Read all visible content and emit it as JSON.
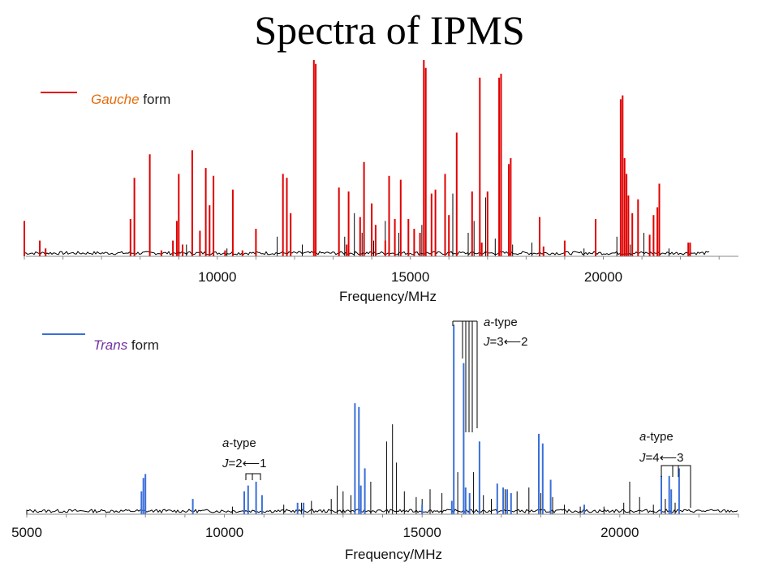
{
  "title": "Spectra of IPMS",
  "colors": {
    "gauche": "#e00000",
    "trans": "#3a6fd8",
    "observed": "#000000"
  },
  "chart_data": [
    {
      "type": "line",
      "legend": {
        "label_italic": "Gauche",
        "label_rest": " form",
        "label_color": "#e46c0a",
        "line_color": "#e00000"
      },
      "xlabel": "Frequency/MHz",
      "ticks": [
        "10000",
        "15000",
        "20000"
      ],
      "tick_values": [
        10000,
        15000,
        20000
      ],
      "xlim": [
        5000,
        23500
      ],
      "ylim": [
        0,
        100
      ],
      "series": [
        {
          "role": "observed",
          "peaks": [
            [
              7750,
              16
            ],
            [
              7850,
              13
            ],
            [
              9000,
              8
            ],
            [
              9200,
              6
            ],
            [
              10250,
              4
            ],
            [
              11550,
              10
            ],
            [
              11800,
              14
            ],
            [
              12200,
              6
            ],
            [
              12500,
              24
            ],
            [
              13300,
              10
            ],
            [
              13550,
              22
            ],
            [
              13750,
              12
            ],
            [
              14050,
              8
            ],
            [
              14350,
              18
            ],
            [
              14700,
              12
            ],
            [
              15300,
              16
            ],
            [
              15550,
              18
            ],
            [
              15900,
              12
            ],
            [
              16100,
              32
            ],
            [
              16500,
              12
            ],
            [
              16650,
              18
            ],
            [
              16950,
              30
            ],
            [
              17200,
              9
            ],
            [
              17650,
              6
            ],
            [
              18150,
              7
            ],
            [
              19500,
              4
            ],
            [
              20350,
              10
            ],
            [
              20700,
              6
            ],
            [
              21050,
              12
            ],
            [
              21200,
              7
            ],
            [
              21700,
              4
            ]
          ]
        },
        {
          "role": "gauche",
          "peaks": [
            [
              5000,
              18
            ],
            [
              5400,
              8
            ],
            [
              5550,
              4
            ],
            [
              7750,
              19
            ],
            [
              7850,
              40
            ],
            [
              8250,
              52
            ],
            [
              8550,
              3
            ],
            [
              8850,
              8
            ],
            [
              8950,
              18
            ],
            [
              9000,
              42
            ],
            [
              9100,
              6
            ],
            [
              9350,
              54
            ],
            [
              9550,
              13
            ],
            [
              9700,
              45
            ],
            [
              9800,
              26
            ],
            [
              9900,
              41
            ],
            [
              10200,
              3
            ],
            [
              10400,
              34
            ],
            [
              10650,
              3
            ],
            [
              11000,
              14
            ],
            [
              11700,
              42
            ],
            [
              11800,
              40
            ],
            [
              11900,
              22
            ],
            [
              12500,
              100
            ],
            [
              12550,
              98
            ],
            [
              13150,
              35
            ],
            [
              13350,
              6
            ],
            [
              13400,
              33
            ],
            [
              13700,
              20
            ],
            [
              13800,
              48
            ],
            [
              14000,
              27
            ],
            [
              14100,
              16
            ],
            [
              14350,
              8
            ],
            [
              14450,
              41
            ],
            [
              14600,
              19
            ],
            [
              14750,
              39
            ],
            [
              14950,
              19
            ],
            [
              15100,
              14
            ],
            [
              15250,
              12
            ],
            [
              15350,
              100
            ],
            [
              15400,
              96
            ],
            [
              15550,
              32
            ],
            [
              15650,
              34
            ],
            [
              15900,
              42
            ],
            [
              16000,
              21
            ],
            [
              16200,
              63
            ],
            [
              16600,
              33
            ],
            [
              16800,
              91
            ],
            [
              16850,
              7
            ],
            [
              17000,
              33
            ],
            [
              17300,
              91
            ],
            [
              17350,
              93
            ],
            [
              17550,
              47
            ],
            [
              17600,
              50
            ],
            [
              18350,
              20
            ],
            [
              18450,
              5
            ],
            [
              19000,
              8
            ],
            [
              19800,
              19
            ],
            [
              20450,
              80
            ],
            [
              20500,
              82
            ],
            [
              20550,
              50
            ],
            [
              20600,
              42
            ],
            [
              20650,
              31
            ],
            [
              20750,
              22
            ],
            [
              20900,
              29
            ],
            [
              21200,
              11
            ],
            [
              21300,
              21
            ],
            [
              21400,
              25
            ],
            [
              21450,
              37
            ],
            [
              22200,
              7
            ],
            [
              22250,
              7
            ]
          ]
        }
      ]
    },
    {
      "type": "line",
      "legend": {
        "label_italic": "Trans",
        "label_rest": " form",
        "label_color": "#7030a0",
        "line_color": "#3a6fd8"
      },
      "xlabel": "Frequency/MHz",
      "ticks": [
        "5000",
        "10000",
        "15000",
        "20000"
      ],
      "tick_values": [
        5000,
        10000,
        15000,
        20000
      ],
      "xlim": [
        5000,
        23000
      ],
      "ylim": [
        0,
        100
      ],
      "series": [
        {
          "role": "observed",
          "peaks": [
            [
              8000,
              6
            ],
            [
              9200,
              5
            ],
            [
              10200,
              4
            ],
            [
              11500,
              5
            ],
            [
              11950,
              6
            ],
            [
              12200,
              7
            ],
            [
              12700,
              8
            ],
            [
              12850,
              15
            ],
            [
              13000,
              12
            ],
            [
              13200,
              10
            ],
            [
              13400,
              8
            ],
            [
              13700,
              17
            ],
            [
              14100,
              38
            ],
            [
              14250,
              47
            ],
            [
              14350,
              27
            ],
            [
              14550,
              12
            ],
            [
              14850,
              9
            ],
            [
              15000,
              8
            ],
            [
              15200,
              13
            ],
            [
              15500,
              11
            ],
            [
              15900,
              22
            ],
            [
              16050,
              14
            ],
            [
              16300,
              22
            ],
            [
              16550,
              10
            ],
            [
              16750,
              8
            ],
            [
              17100,
              13
            ],
            [
              17400,
              12
            ],
            [
              17700,
              14
            ],
            [
              18000,
              11
            ],
            [
              18300,
              9
            ],
            [
              18600,
              5
            ],
            [
              19000,
              4
            ],
            [
              19600,
              4
            ],
            [
              20100,
              6
            ],
            [
              20250,
              17
            ],
            [
              20500,
              9
            ],
            [
              20850,
              5
            ],
            [
              21150,
              8
            ],
            [
              21400,
              6
            ]
          ]
        },
        {
          "role": "trans",
          "peaks": [
            [
              7900,
              12
            ],
            [
              7950,
              19
            ],
            [
              8000,
              21
            ],
            [
              9200,
              8
            ],
            [
              10500,
              12
            ],
            [
              10600,
              15
            ],
            [
              10800,
              17
            ],
            [
              10950,
              10
            ],
            [
              11850,
              6
            ],
            [
              12000,
              6
            ],
            [
              13300,
              58
            ],
            [
              13400,
              56
            ],
            [
              13450,
              15
            ],
            [
              13550,
              24
            ],
            [
              15000,
              5
            ],
            [
              15750,
              7
            ],
            [
              15800,
              99
            ],
            [
              16050,
              79
            ],
            [
              16100,
              14
            ],
            [
              16200,
              11
            ],
            [
              16450,
              38
            ],
            [
              16900,
              16
            ],
            [
              17050,
              14
            ],
            [
              17150,
              13
            ],
            [
              17250,
              11
            ],
            [
              17950,
              42
            ],
            [
              18050,
              37
            ],
            [
              18250,
              18
            ],
            [
              19100,
              5
            ],
            [
              21050,
              20
            ],
            [
              21250,
              20
            ],
            [
              21300,
              13
            ],
            [
              21500,
              24
            ]
          ]
        }
      ],
      "annotations": [
        {
          "italic": "a",
          "type_text": "-type",
          "j_italic": "J",
          "j_text": "=2⟵1"
        },
        {
          "italic": "a",
          "type_text": "-type",
          "j_italic": "J",
          "j_text": "=3⟵2"
        },
        {
          "italic": "a",
          "type_text": "-type",
          "j_italic": "J",
          "j_text": "=4⟵3"
        }
      ]
    }
  ]
}
